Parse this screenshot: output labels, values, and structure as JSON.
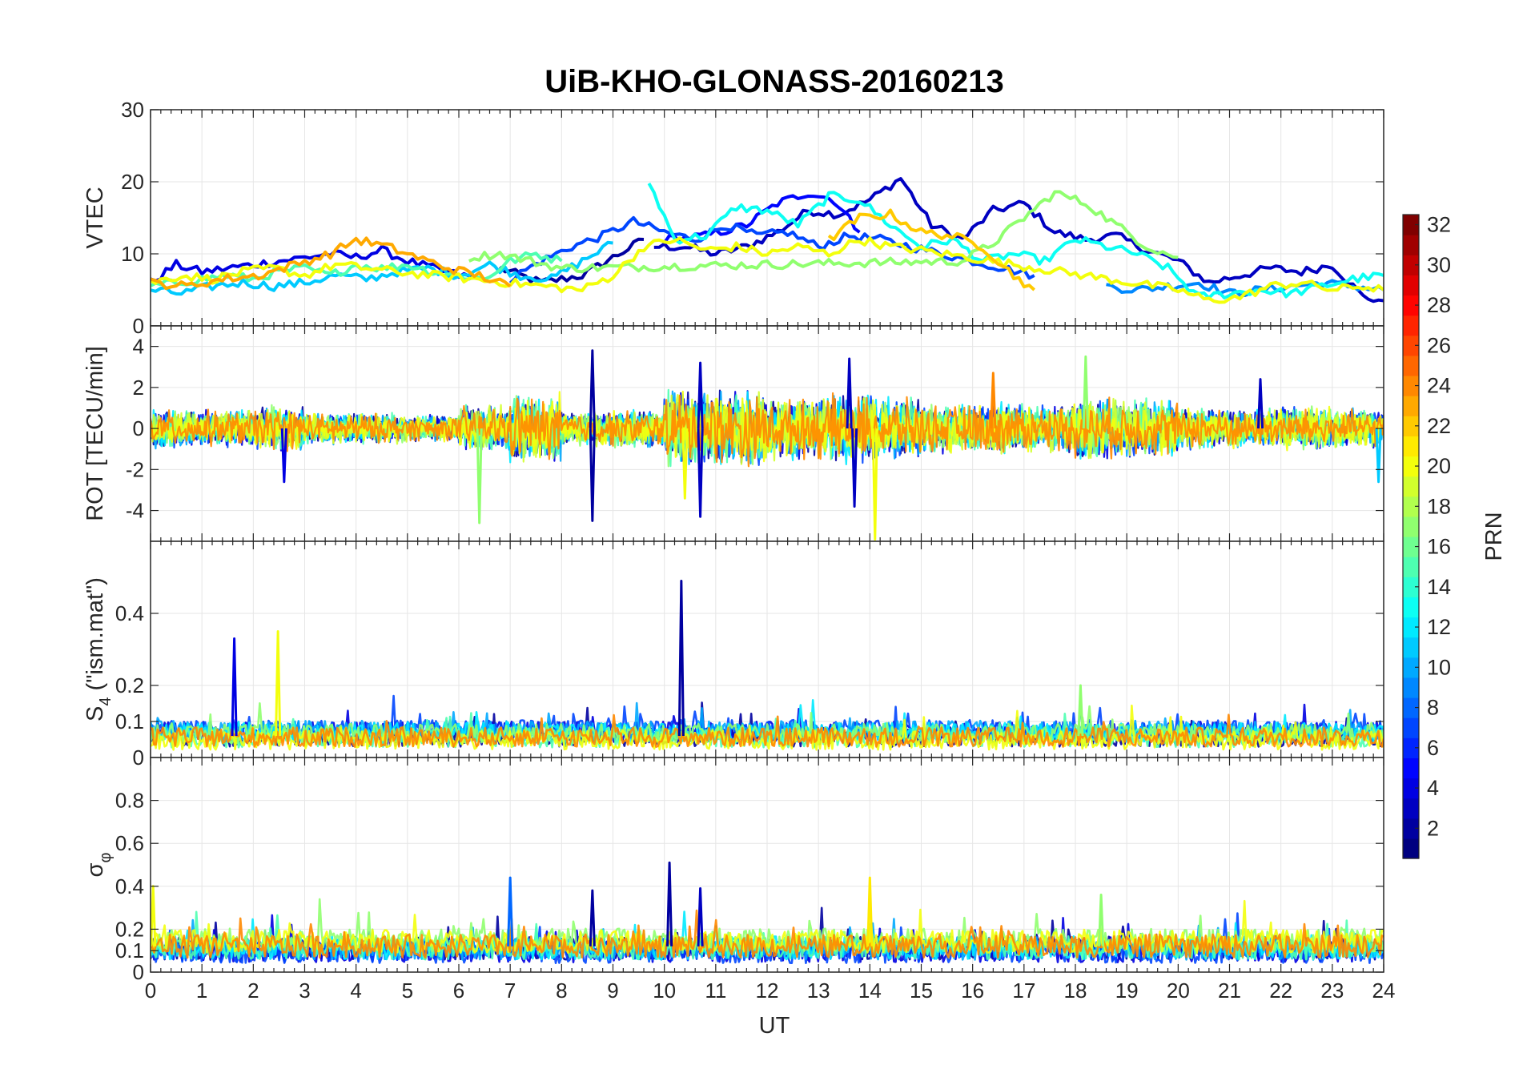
{
  "chart_data": {
    "type": "line",
    "title": "UiB-KHO-GLONASS-20160213",
    "xlabel": "UT",
    "xlim": [
      0,
      24
    ],
    "xticks": [
      "0",
      "1",
      "2",
      "3",
      "4",
      "5",
      "6",
      "7",
      "8",
      "9",
      "10",
      "11",
      "12",
      "13",
      "14",
      "15",
      "16",
      "17",
      "18",
      "19",
      "20",
      "21",
      "22",
      "23",
      "24"
    ],
    "grid": true,
    "colormap": "jet",
    "colorbar": {
      "label": "PRN",
      "range": [
        1,
        32
      ],
      "ticks": [
        "2",
        "4",
        "6",
        "8",
        "10",
        "12",
        "14",
        "16",
        "18",
        "20",
        "22",
        "24",
        "26",
        "28",
        "30",
        "32"
      ],
      "placement": "right"
    },
    "panels": [
      {
        "id": "vtec",
        "ylabel": "VTEC",
        "ylim": [
          0,
          30
        ],
        "yticks": [
          {
            "v": 0,
            "t": "0"
          },
          {
            "v": 10,
            "t": "10"
          },
          {
            "v": 20,
            "t": "20"
          },
          {
            "v": 30,
            "t": "30"
          }
        ],
        "series": [
          {
            "prn": 2,
            "x": [
              6.8,
              7.6,
              8.4,
              9.0,
              9.6
            ],
            "y": [
              8.0,
              6.0,
              7.0,
              9.5,
              12.0
            ]
          },
          {
            "prn": 3,
            "x": [
              9.8,
              10.4,
              11.0,
              11.6,
              12.2,
              12.8,
              13.4,
              14.0,
              14.6,
              15.2,
              15.8,
              16.4,
              17.0,
              17.6,
              18.2,
              18.8,
              19.4,
              20.0,
              20.6,
              21.2,
              21.8,
              22.4,
              23.0,
              23.6,
              24.0
            ],
            "y": [
              11.0,
              11.0,
              10.0,
              11.0,
              13.0,
              16.0,
              15.5,
              17.5,
              20.5,
              14.0,
              12.0,
              16.0,
              17.0,
              13.0,
              12.0,
              12.5,
              10.5,
              9.0,
              6.0,
              7.0,
              8.0,
              7.5,
              8.5,
              4.0,
              3.5
            ]
          },
          {
            "prn": 4,
            "x": [
              0.0,
              0.5,
              1.0,
              1.5,
              2.0,
              2.5,
              3.0,
              3.5,
              4.0,
              4.5,
              5.0,
              5.5,
              6.0,
              6.5
            ],
            "y": [
              6.0,
              8.5,
              7.5,
              8.0,
              8.5,
              9.0,
              9.5,
              10.0,
              9.5,
              10.5,
              9.0,
              8.0,
              7.0,
              6.5
            ]
          },
          {
            "prn": 5,
            "x": [
              10.0,
              10.8,
              11.6,
              12.2,
              12.8,
              13.3,
              13.8
            ],
            "y": [
              12.0,
              12.5,
              14.0,
              17.0,
              18.5,
              17.5,
              13.0
            ]
          },
          {
            "prn": 7,
            "x": [
              7.0,
              7.6,
              8.2,
              8.8,
              9.4,
              10.0,
              10.6,
              11.2,
              11.8,
              12.4,
              13.0,
              13.6,
              14.2,
              14.8,
              15.4,
              16.0,
              16.6,
              17.2
            ],
            "y": [
              6.5,
              9.0,
              11.0,
              12.5,
              14.5,
              13.0,
              12.0,
              14.0,
              12.5,
              13.0,
              11.0,
              12.5,
              12.0,
              11.0,
              10.0,
              9.0,
              8.0,
              7.0
            ]
          },
          {
            "prn": 9,
            "x": [
              18.6,
              19.2,
              19.8,
              20.4,
              21.0,
              21.6,
              22.2,
              22.8,
              23.4,
              24.0
            ],
            "y": [
              5.5,
              5.0,
              5.5,
              6.0,
              4.5,
              5.0,
              5.5,
              6.0,
              5.5,
              5.0
            ]
          },
          {
            "prn": 11,
            "x": [
              0.0,
              0.6,
              1.2,
              1.8,
              2.4,
              3.0,
              3.6,
              4.2,
              4.8,
              5.4,
              6.0,
              6.6,
              7.2,
              7.8,
              8.4,
              9.0
            ],
            "y": [
              5.0,
              4.5,
              5.5,
              6.0,
              5.5,
              6.0,
              7.0,
              6.5,
              7.5,
              8.0,
              7.0,
              8.5,
              7.0,
              6.5,
              9.0,
              11.5
            ]
          },
          {
            "prn": 13,
            "x": [
              9.7,
              10.2,
              10.8,
              11.4,
              12.0,
              12.6,
              13.2,
              13.8,
              14.4,
              15.0,
              15.6,
              16.2,
              16.8,
              17.4,
              18.0,
              18.6,
              19.2,
              19.8,
              20.4,
              21.0,
              21.6,
              22.2,
              22.8,
              23.4,
              24.0
            ],
            "y": [
              20.0,
              12.0,
              12.5,
              16.5,
              16.0,
              14.0,
              18.0,
              17.5,
              14.0,
              11.0,
              12.0,
              9.0,
              10.0,
              9.0,
              12.0,
              11.0,
              10.0,
              8.0,
              4.0,
              4.5,
              5.0,
              4.5,
              5.5,
              6.5,
              7.0
            ]
          },
          {
            "prn": 15,
            "x": [
              0.0,
              0.5,
              1.0,
              1.5,
              2.0,
              2.5,
              3.0,
              3.5,
              4.0,
              4.5,
              5.0,
              5.5,
              6.0,
              6.5,
              7.0,
              7.5,
              8.0
            ],
            "y": [
              5.5,
              6.0,
              6.5,
              7.0,
              6.5,
              7.5,
              8.0,
              7.0,
              8.5,
              8.0,
              8.5,
              7.5,
              7.0,
              6.5,
              9.0,
              10.0,
              9.0
            ]
          },
          {
            "prn": 17,
            "x": [
              6.2,
              6.8,
              7.4,
              8.0,
              15.8,
              16.4,
              17.0,
              17.6,
              18.2,
              18.8,
              19.4,
              20.0
            ],
            "y": [
              9.5,
              10.0,
              9.0,
              8.0,
              9.0,
              11.5,
              15.0,
              18.5,
              17.0,
              14.0,
              11.0,
              9.5
            ]
          },
          {
            "prn": 20,
            "x": [
              0.0,
              0.6,
              1.2,
              1.8,
              2.4,
              3.0,
              3.6,
              4.2,
              4.8,
              8.4,
              9.0,
              9.6,
              10.2,
              10.8,
              11.4,
              12.0,
              12.6,
              13.2,
              13.8,
              14.4,
              15.0,
              20.0,
              20.6,
              21.2,
              21.8,
              22.4,
              23.0,
              23.6,
              24.0
            ],
            "y": [
              6.0,
              7.0,
              6.5,
              7.5,
              8.0,
              7.0,
              8.5,
              8.0,
              7.5,
              5.0,
              7.0,
              11.0,
              12.0,
              10.5,
              11.0,
              10.0,
              11.0,
              10.0,
              12.0,
              11.0,
              10.5,
              5.0,
              3.5,
              4.0,
              5.5,
              6.0,
              5.0,
              5.5,
              5.0
            ]
          },
          {
            "prn": 22,
            "x": [
              13.2,
              13.8,
              14.4,
              15.0,
              15.6,
              16.2,
              16.8,
              17.2
            ],
            "y": [
              12.0,
              15.0,
              15.5,
              13.0,
              12.5,
              11.0,
              7.0,
              5.0
            ]
          },
          {
            "prn": 23,
            "x": [
              0.0,
              0.7,
              1.4,
              2.1,
              2.8,
              3.5,
              4.0,
              4.6,
              5.2,
              5.8,
              6.4,
              7.0
            ],
            "y": [
              6.0,
              5.5,
              6.5,
              7.0,
              8.5,
              10.0,
              12.0,
              11.0,
              9.5,
              8.0,
              7.0,
              5.5
            ]
          }
        ]
      },
      {
        "id": "rot",
        "ylabel": "ROT [TECU/min]",
        "ylim": [
          -5.5,
          5.0
        ],
        "yticks": [
          {
            "v": -4,
            "t": "-4"
          },
          {
            "v": -2,
            "t": "-2"
          },
          {
            "v": 0,
            "t": "0"
          },
          {
            "v": 2,
            "t": "2"
          },
          {
            "v": 4,
            "t": "4"
          }
        ],
        "spikes": [
          {
            "prn": 2,
            "x": 8.6,
            "y": 3.8
          },
          {
            "prn": 2,
            "x": 8.6,
            "y": -4.5
          },
          {
            "prn": 3,
            "x": 10.7,
            "y": 3.2
          },
          {
            "prn": 3,
            "x": 10.7,
            "y": -4.3
          },
          {
            "prn": 3,
            "x": 13.6,
            "y": 3.4
          },
          {
            "prn": 3,
            "x": 13.7,
            "y": -3.8
          },
          {
            "prn": 4,
            "x": 2.6,
            "y": -2.6
          },
          {
            "prn": 17,
            "x": 6.4,
            "y": -4.6
          },
          {
            "prn": 20,
            "x": 14.1,
            "y": -5.4
          },
          {
            "prn": 20,
            "x": 10.4,
            "y": -3.4
          },
          {
            "prn": 24,
            "x": 16.4,
            "y": 2.7
          },
          {
            "prn": 17,
            "x": 18.2,
            "y": 3.5
          },
          {
            "prn": 3,
            "x": 21.6,
            "y": 2.4
          },
          {
            "prn": 11,
            "x": 23.9,
            "y": -2.6
          }
        ],
        "band_amplitude": [
          1.0,
          1.0,
          1.2,
          0.8,
          0.8,
          0.7,
          1.2,
          1.8,
          0.9,
          1.0,
          2.0,
          2.0,
          1.6,
          1.8,
          1.6,
          1.3,
          1.4,
          1.3,
          1.6,
          1.5,
          1.1,
          1.0,
          1.1,
          1.0,
          1.0
        ]
      },
      {
        "id": "s4",
        "ylabel": "S",
        "ylabel_sub": "4",
        "ylabel_suffix": " (\"ism.mat\")",
        "ylim": [
          0,
          0.6
        ],
        "yticks": [
          {
            "v": 0,
            "t": "0"
          },
          {
            "v": 0.1,
            "t": "0.1"
          },
          {
            "v": 0.2,
            "t": "0.2"
          },
          {
            "v": 0.4,
            "t": "0.4"
          }
        ],
        "spikes": [
          {
            "prn": 4,
            "x": 1.63,
            "y": 0.33
          },
          {
            "prn": 20,
            "x": 2.48,
            "y": 0.35
          },
          {
            "prn": 2,
            "x": 10.33,
            "y": 0.49
          },
          {
            "prn": 17,
            "x": 18.1,
            "y": 0.2
          }
        ],
        "baseline": 0.06
      },
      {
        "id": "sigma_phi",
        "ylabel": "σ",
        "ylabel_sub": "φ",
        "ylim": [
          0,
          1
        ],
        "yticks": [
          {
            "v": 0,
            "t": "0"
          },
          {
            "v": 0.1,
            "t": "0.1"
          },
          {
            "v": 0.2,
            "t": "0.2"
          },
          {
            "v": 0.4,
            "t": "0.4"
          },
          {
            "v": 0.6,
            "t": "0.6"
          },
          {
            "v": 0.8,
            "t": "0.8"
          }
        ],
        "spikes": [
          {
            "prn": 2,
            "x": 10.1,
            "y": 0.51
          },
          {
            "prn": 8,
            "x": 7.0,
            "y": 0.44
          },
          {
            "prn": 21,
            "x": 14.0,
            "y": 0.44
          },
          {
            "prn": 2,
            "x": 8.6,
            "y": 0.38
          },
          {
            "prn": 3,
            "x": 10.7,
            "y": 0.39
          },
          {
            "prn": 20,
            "x": 0.05,
            "y": 0.4
          },
          {
            "prn": 17,
            "x": 18.5,
            "y": 0.36
          }
        ],
        "baseline": 0.12
      }
    ]
  }
}
